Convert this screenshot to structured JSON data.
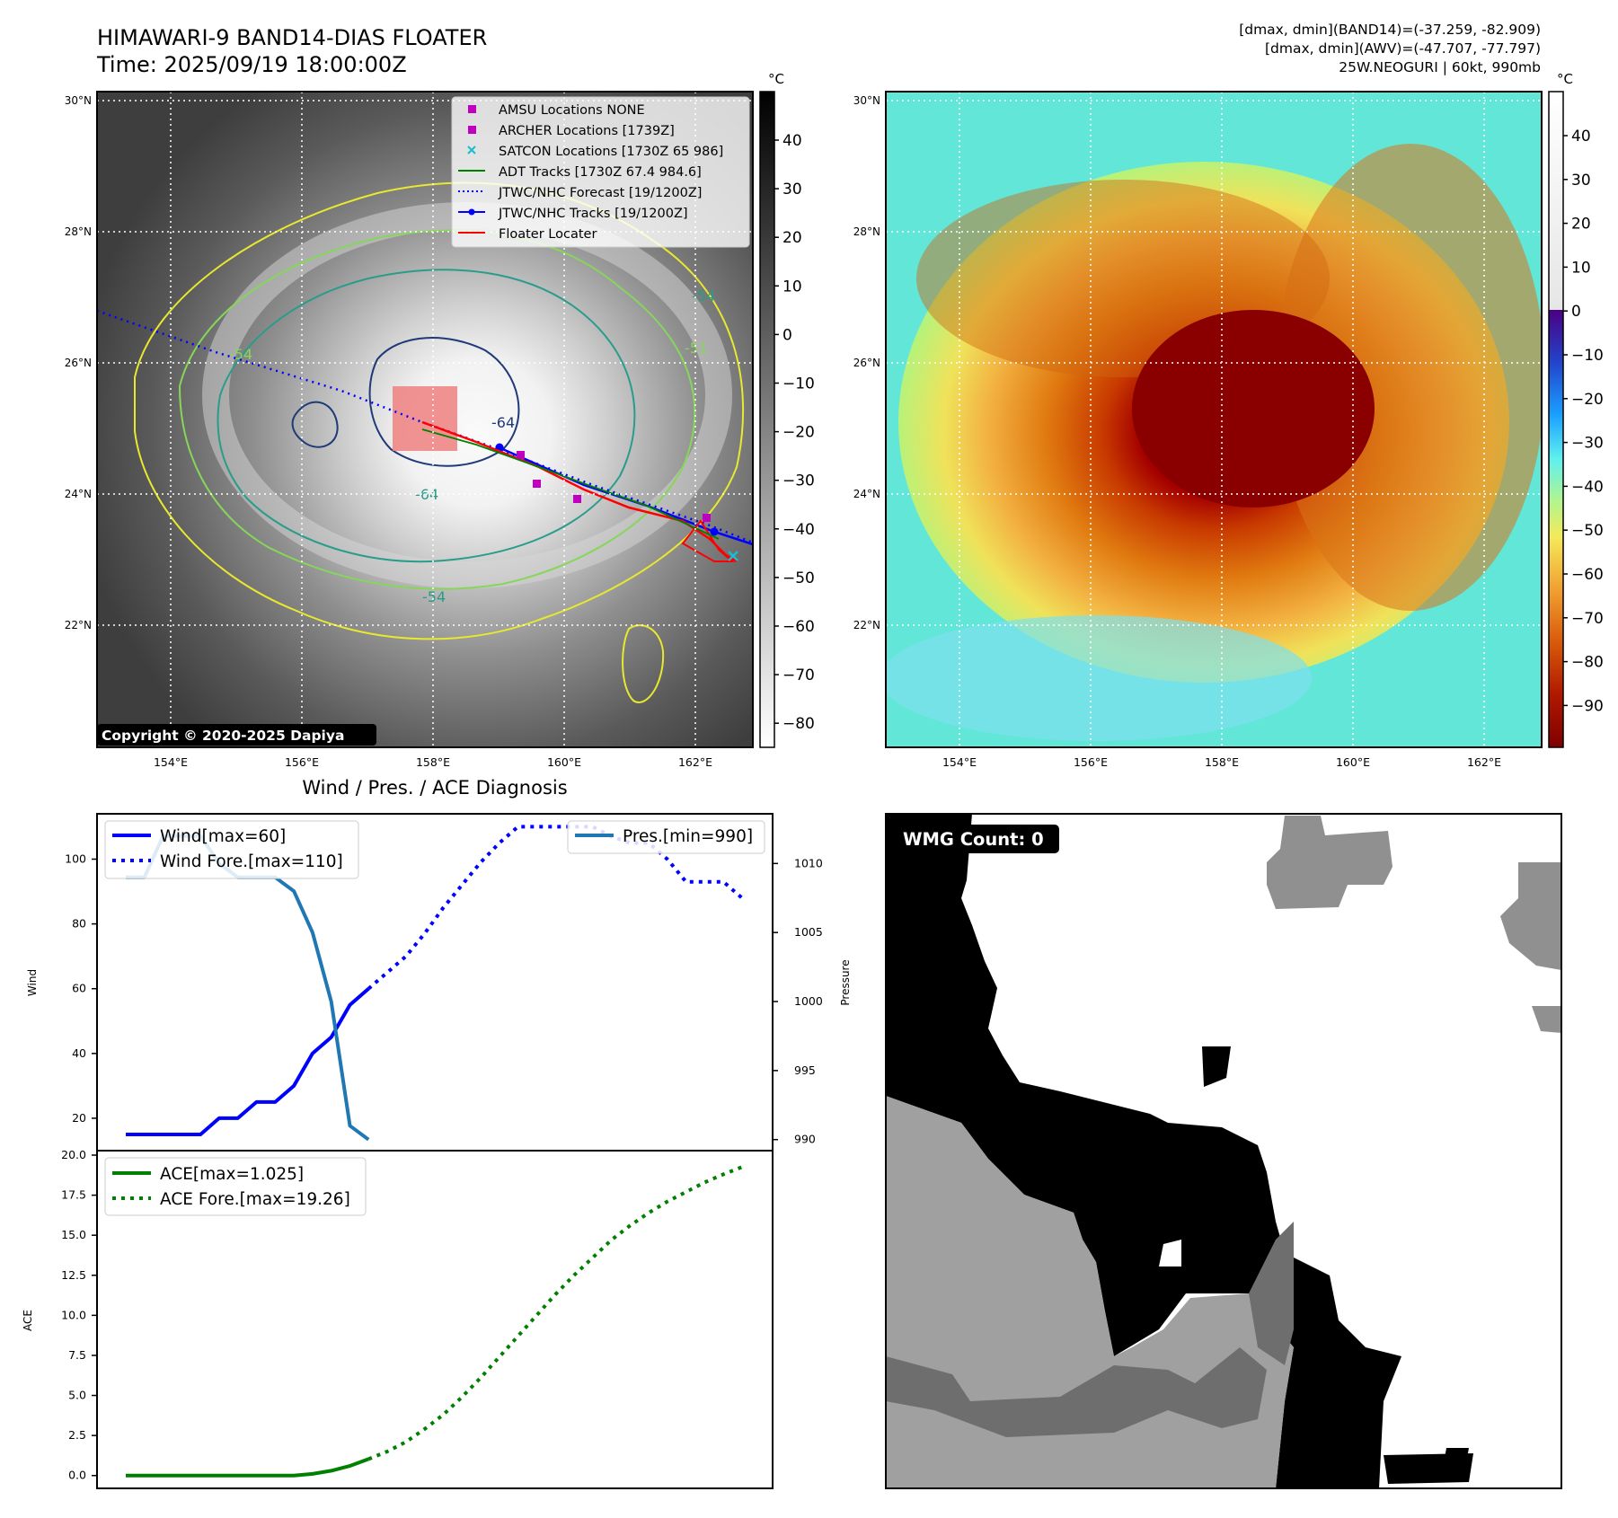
{
  "header": {
    "title_line1": "HIMAWARI-9 BAND14-DIAS FLOATER",
    "title_line2": "Time: 2025/09/19 18:00:00Z",
    "info_line1": "[dmax, dmin](BAND14)=(-37.259, -82.909)",
    "info_line2": "[dmax, dmin](AWV)=(-47.707, -77.797)",
    "info_line3": "25W.NEOGURI | 60kt, 990mb"
  },
  "map": {
    "lat_labels": [
      "30°N",
      "28°N",
      "26°N",
      "24°N",
      "22°N"
    ],
    "lon_labels": [
      "154°E",
      "156°E",
      "158°E",
      "160°E",
      "162°E"
    ],
    "copyright": "Copyright © 2020-2025 Dapiya",
    "contour_labels": [
      "-54",
      "-64",
      "-54",
      "-51",
      "-54",
      "-64"
    ],
    "legend": [
      {
        "label": "AMSU Locations NONE",
        "color": "#c000c0",
        "marker": "square"
      },
      {
        "label": "ARCHER Locations [1739Z]",
        "color": "#c000c0",
        "marker": "square"
      },
      {
        "label": "SATCON Locations [1730Z 65 986]",
        "color": "#17becf",
        "marker": "x"
      },
      {
        "label": "ADT Tracks [1730Z 67.4 984.6]",
        "color": "#008000",
        "marker": "line"
      },
      {
        "label": "JTWC/NHC Forecast [19/1200Z]",
        "color": "#0000ff",
        "marker": "dotted"
      },
      {
        "label": "JTWC/NHC Tracks [19/1200Z]",
        "color": "#0000ff",
        "marker": "line-dot"
      },
      {
        "label": "Floater Locater",
        "color": "#ff0000",
        "marker": "line"
      }
    ]
  },
  "colorbar_left": {
    "unit": "°C",
    "ticks": [
      "40",
      "30",
      "20",
      "10",
      "0",
      "−10",
      "−20",
      "−30",
      "−40",
      "−50",
      "−60",
      "−70",
      "−80"
    ]
  },
  "colorbar_right": {
    "unit": "°C",
    "ticks": [
      "40",
      "30",
      "20",
      "10",
      "0",
      "−10",
      "−20",
      "−30",
      "−40",
      "−50",
      "−60",
      "−70",
      "−80",
      "−90"
    ]
  },
  "wmg": {
    "label": "WMG Count: 0"
  },
  "chart_data": [
    {
      "type": "line",
      "title": "Wind / Pres. / ACE Diagnosis",
      "ylabel": "Wind",
      "ylabel_right": "Pressure",
      "ylim": [
        10,
        114
      ],
      "ylim_right": [
        989.2,
        1013.6
      ],
      "yticks": [
        20,
        40,
        60,
        80,
        100
      ],
      "yticks_right": [
        990,
        995,
        1000,
        1005,
        1010
      ],
      "series": [
        {
          "name": "Wind[max=60]",
          "axis": "left",
          "style": "solid",
          "color": "#0000ff",
          "x": [
            0,
            1,
            2,
            3,
            4,
            5,
            6,
            7,
            8,
            9,
            10,
            11,
            12,
            13
          ],
          "values": [
            15,
            15,
            15,
            15,
            15,
            20,
            20,
            25,
            25,
            30,
            40,
            45,
            55,
            60
          ]
        },
        {
          "name": "Wind Fore.[max=110]",
          "axis": "left",
          "style": "dotted",
          "color": "#0000ff",
          "x": [
            13,
            14,
            15,
            16,
            17,
            18,
            19,
            20,
            21,
            22,
            23,
            24,
            25,
            26,
            27,
            28,
            29,
            30,
            31,
            32,
            33
          ],
          "values": [
            60,
            65,
            70,
            77,
            85,
            92,
            99,
            105,
            110,
            110,
            110,
            110,
            110,
            107,
            105,
            105,
            100,
            93,
            93,
            93,
            88
          ]
        },
        {
          "name": "Pres.[min=990]",
          "axis": "right",
          "style": "solid",
          "color": "#1f77b4",
          "x": [
            0,
            1,
            2,
            3,
            4,
            5,
            6,
            7,
            8,
            9,
            10,
            11,
            12,
            13
          ],
          "values": [
            1009,
            1009,
            1012,
            1012,
            1012,
            1010,
            1009,
            1009,
            1009,
            1008,
            1005,
            1000,
            991,
            990
          ]
        }
      ]
    },
    {
      "type": "line",
      "ylabel": "ACE",
      "ylim": [
        -0.8,
        20.0
      ],
      "yticks": [
        0.0,
        2.5,
        5.0,
        7.5,
        10.0,
        12.5,
        15.0,
        17.5,
        20.0
      ],
      "series": [
        {
          "name": "ACE[max=1.025]",
          "style": "solid",
          "color": "#008000",
          "x": [
            0,
            1,
            2,
            3,
            4,
            5,
            6,
            7,
            8,
            9,
            10,
            11,
            12,
            13
          ],
          "values": [
            0,
            0,
            0,
            0,
            0,
            0,
            0,
            0,
            0,
            0,
            0.1,
            0.3,
            0.6,
            1.025
          ]
        },
        {
          "name": "ACE Fore.[max=19.26]",
          "style": "dotted",
          "color": "#008000",
          "x": [
            13,
            14,
            15,
            16,
            17,
            18,
            19,
            20,
            21,
            22,
            23,
            24,
            25,
            26,
            27,
            28,
            29,
            30,
            31,
            32,
            33
          ],
          "values": [
            1.025,
            1.5,
            2.1,
            2.9,
            3.8,
            4.9,
            6.1,
            7.4,
            8.7,
            10.0,
            11.3,
            12.5,
            13.6,
            14.7,
            15.6,
            16.4,
            17.1,
            17.7,
            18.3,
            18.8,
            19.26
          ]
        }
      ]
    }
  ]
}
